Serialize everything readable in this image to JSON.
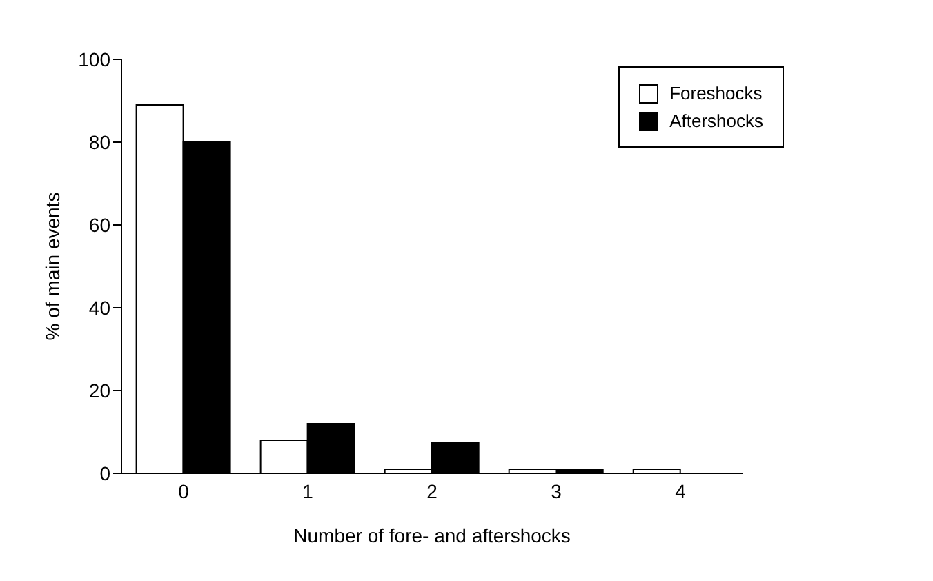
{
  "chart_data": {
    "type": "bar",
    "xlabel": "Number of fore- and aftershocks",
    "ylabel": "% of main events",
    "categories": [
      "0",
      "1",
      "2",
      "3",
      "4"
    ],
    "series": [
      {
        "name": "Foreshocks",
        "color": "#ffffff",
        "values": [
          89,
          8,
          1,
          1,
          1
        ]
      },
      {
        "name": "Aftershocks",
        "color": "#000000",
        "values": [
          80,
          12,
          7.5,
          1,
          0
        ]
      }
    ],
    "ylim": [
      0,
      100
    ],
    "yticks": [
      0,
      20,
      40,
      60,
      80,
      100
    ],
    "grid": false,
    "legend": "top right"
  }
}
